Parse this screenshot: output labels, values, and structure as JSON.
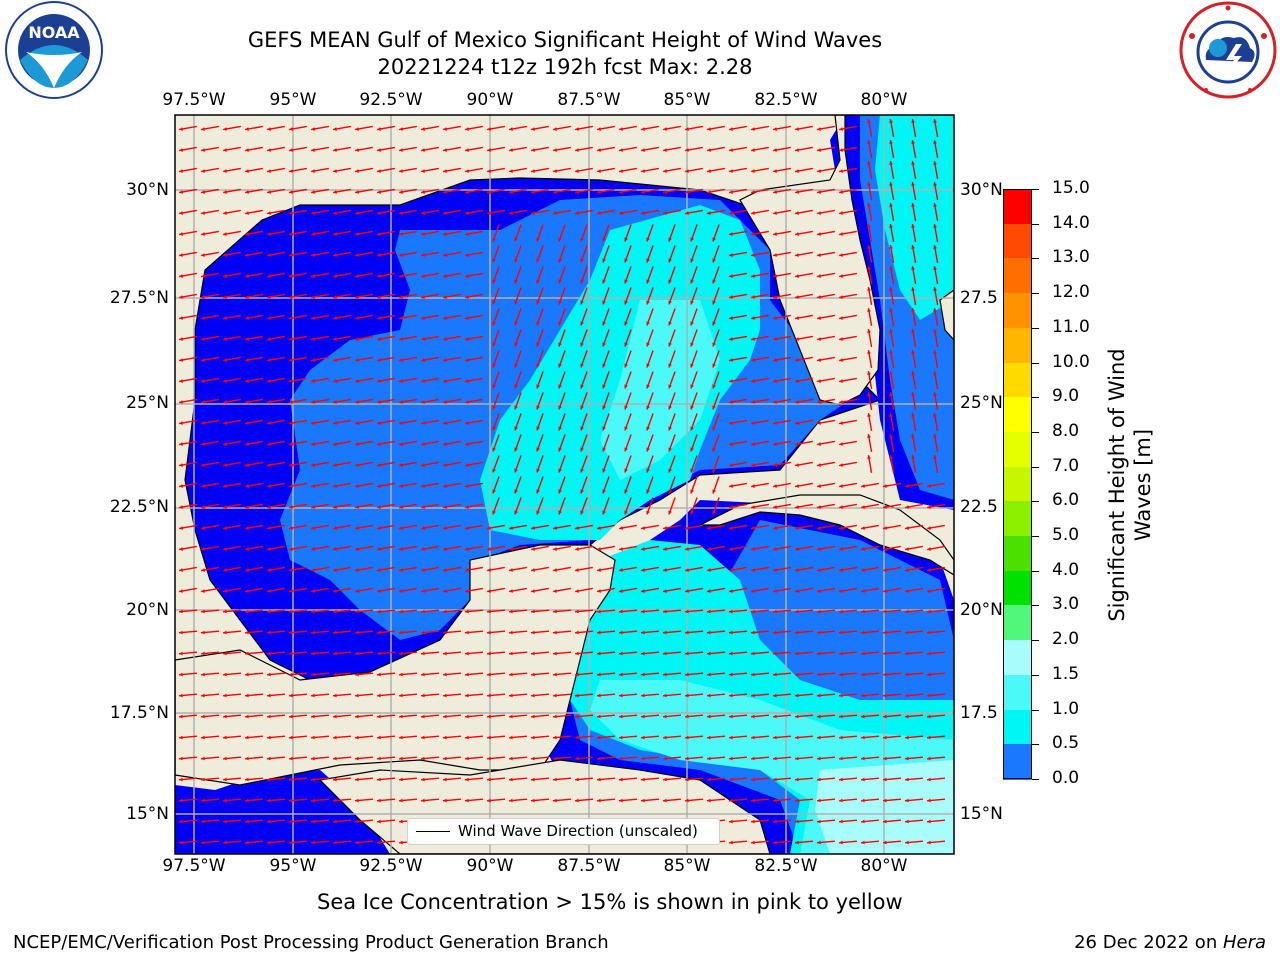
{
  "title": {
    "line1": "GEFS MEAN Gulf of Mexico Significant Height of Wind Waves",
    "line2": "20221224 t12z 192h fcst   Max: 2.28"
  },
  "logos": {
    "left": {
      "name": "noaa-logo",
      "text": "NOAA"
    },
    "right": {
      "name": "national-weather-service-logo"
    }
  },
  "map": {
    "lon_labels": [
      "97.5°W",
      "95°W",
      "92.5°W",
      "90°W",
      "87.5°W",
      "85°W",
      "82.5°W",
      "80°W"
    ],
    "lat_labels_left": [
      "30°N",
      "27.5°N",
      "25°N",
      "22.5°N",
      "20°N",
      "17.5°N",
      "15°N"
    ],
    "lat_labels_right": [
      "30°N",
      "27.5",
      "25°N",
      "22.5",
      "20°N",
      "17.5",
      "15°N"
    ],
    "colors": {
      "land": "#efecdc",
      "level_0_0.5": "#0000f5",
      "level_0.5_1.0": "#1a78ff",
      "level_1.0_1.5": "#00f5f5",
      "level_1.5_2.0": "#4cf9f9",
      "level_2.0_3.0": "#a8fcfc",
      "arrow": "#ff0000"
    },
    "legend": {
      "label": "Wind Wave Direction (unscaled)"
    }
  },
  "colorbar": {
    "label": "Significant Height of Wind Waves [m]",
    "ticks": [
      "15.0",
      "14.0",
      "13.0",
      "12.0",
      "11.0",
      "10.0",
      "9.0",
      "8.0",
      "7.0",
      "6.0",
      "5.0",
      "4.0",
      "3.0",
      "2.0",
      "1.5",
      "1.0",
      "0.5",
      "0.0"
    ],
    "colors": [
      "#ff0000",
      "#ff2400",
      "#ff4a00",
      "#ff6e00",
      "#ff9200",
      "#ffb600",
      "#ffda00",
      "#ffff00",
      "#e6ff00",
      "#c8f500",
      "#8cf000",
      "#4ce000",
      "#00e100",
      "#50f77a",
      "#a8fcfc",
      "#4cf9f9",
      "#00f5f5",
      "#1a78ff",
      "#0000f5"
    ]
  },
  "notes": {
    "sea_ice": "Sea Ice Concentration > 15% is shown in pink to yellow",
    "credit": "NCEP/EMC/Verification Post Processing Product Generation Branch",
    "date": "26 Dec 2022 on ",
    "machine": "Hera"
  }
}
